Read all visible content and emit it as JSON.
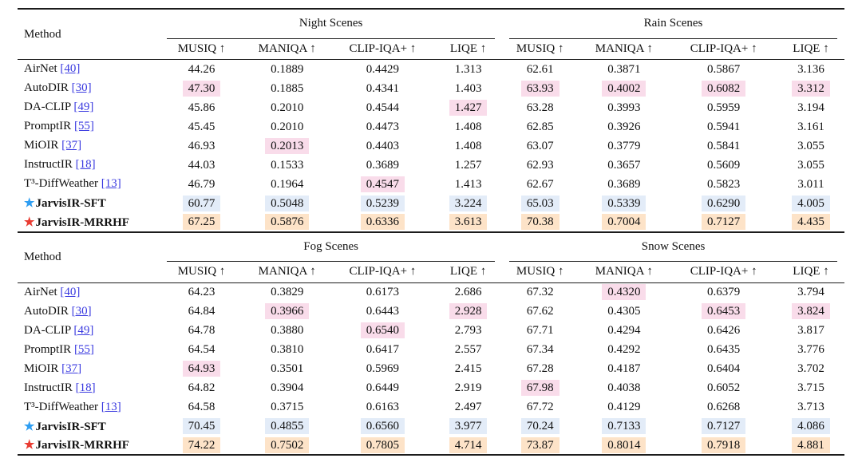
{
  "colors": {
    "highlight_pink": "#f9dcea",
    "highlight_blue": "#e3ecf8",
    "highlight_orange": "#fde3c8",
    "link_blue": "#3a3ae0",
    "star_blue": "#2f9ef2",
    "star_red": "#e93c32",
    "rule_black": "#1c1c1c"
  },
  "icons": {
    "star": "★"
  },
  "tables": [
    {
      "method_header": "Method",
      "groups": [
        {
          "label": "Night Scenes",
          "metrics": [
            "MUSIQ ↑",
            "MANIQA ↑",
            "CLIP-IQA+ ↑",
            "LIQE ↑"
          ]
        },
        {
          "label": "Rain Scenes",
          "metrics": [
            "MUSIQ ↑",
            "MANIQA ↑",
            "CLIP-IQA+ ↑",
            "LIQE ↑"
          ]
        }
      ],
      "rows": [
        {
          "method": "AirNet",
          "citation": "[40]",
          "star": "",
          "bold": false,
          "cells": [
            {
              "v": "44.26",
              "hl": ""
            },
            {
              "v": "0.1889",
              "hl": ""
            },
            {
              "v": "0.4429",
              "hl": ""
            },
            {
              "v": "1.313",
              "hl": ""
            },
            {
              "v": "62.61",
              "hl": ""
            },
            {
              "v": "0.3871",
              "hl": ""
            },
            {
              "v": "0.5867",
              "hl": ""
            },
            {
              "v": "3.136",
              "hl": ""
            }
          ]
        },
        {
          "method": "AutoDIR",
          "citation": "[30]",
          "star": "",
          "bold": false,
          "cells": [
            {
              "v": "47.30",
              "hl": "pink"
            },
            {
              "v": "0.1885",
              "hl": ""
            },
            {
              "v": "0.4341",
              "hl": ""
            },
            {
              "v": "1.403",
              "hl": ""
            },
            {
              "v": "63.93",
              "hl": "pink"
            },
            {
              "v": "0.4002",
              "hl": "pink"
            },
            {
              "v": "0.6082",
              "hl": "pink"
            },
            {
              "v": "3.312",
              "hl": "pink"
            }
          ]
        },
        {
          "method": "DA-CLIP",
          "citation": "[49]",
          "star": "",
          "bold": false,
          "cells": [
            {
              "v": "45.86",
              "hl": ""
            },
            {
              "v": "0.2010",
              "hl": ""
            },
            {
              "v": "0.4544",
              "hl": ""
            },
            {
              "v": "1.427",
              "hl": "pink"
            },
            {
              "v": "63.28",
              "hl": ""
            },
            {
              "v": "0.3993",
              "hl": ""
            },
            {
              "v": "0.5959",
              "hl": ""
            },
            {
              "v": "3.194",
              "hl": ""
            }
          ]
        },
        {
          "method": "PromptIR",
          "citation": "[55]",
          "star": "",
          "bold": false,
          "cells": [
            {
              "v": "45.45",
              "hl": ""
            },
            {
              "v": "0.2010",
              "hl": ""
            },
            {
              "v": "0.4473",
              "hl": ""
            },
            {
              "v": "1.408",
              "hl": ""
            },
            {
              "v": "62.85",
              "hl": ""
            },
            {
              "v": "0.3926",
              "hl": ""
            },
            {
              "v": "0.5941",
              "hl": ""
            },
            {
              "v": "3.161",
              "hl": ""
            }
          ]
        },
        {
          "method": "MiOIR",
          "citation": "[37]",
          "star": "",
          "bold": false,
          "cells": [
            {
              "v": "46.93",
              "hl": ""
            },
            {
              "v": "0.2013",
              "hl": "pink"
            },
            {
              "v": "0.4403",
              "hl": ""
            },
            {
              "v": "1.408",
              "hl": ""
            },
            {
              "v": "63.07",
              "hl": ""
            },
            {
              "v": "0.3779",
              "hl": ""
            },
            {
              "v": "0.5841",
              "hl": ""
            },
            {
              "v": "3.055",
              "hl": ""
            }
          ]
        },
        {
          "method": "InstructIR",
          "citation": "[18]",
          "star": "",
          "bold": false,
          "cells": [
            {
              "v": "44.03",
              "hl": ""
            },
            {
              "v": "0.1533",
              "hl": ""
            },
            {
              "v": "0.3689",
              "hl": ""
            },
            {
              "v": "1.257",
              "hl": ""
            },
            {
              "v": "62.93",
              "hl": ""
            },
            {
              "v": "0.3657",
              "hl": ""
            },
            {
              "v": "0.5609",
              "hl": ""
            },
            {
              "v": "3.055",
              "hl": ""
            }
          ]
        },
        {
          "method": "T³-DiffWeather",
          "citation": "[13]",
          "star": "",
          "bold": false,
          "cells": [
            {
              "v": "46.79",
              "hl": ""
            },
            {
              "v": "0.1964",
              "hl": ""
            },
            {
              "v": "0.4547",
              "hl": "pink"
            },
            {
              "v": "1.413",
              "hl": ""
            },
            {
              "v": "62.67",
              "hl": ""
            },
            {
              "v": "0.3689",
              "hl": ""
            },
            {
              "v": "0.5823",
              "hl": ""
            },
            {
              "v": "3.011",
              "hl": ""
            }
          ]
        },
        {
          "method": "JarvisIR-SFT",
          "citation": "",
          "star": "blue",
          "bold": true,
          "cells": [
            {
              "v": "60.77",
              "hl": "blue"
            },
            {
              "v": "0.5048",
              "hl": "blue"
            },
            {
              "v": "0.5239",
              "hl": "blue"
            },
            {
              "v": "3.224",
              "hl": "blue"
            },
            {
              "v": "65.03",
              "hl": "blue"
            },
            {
              "v": "0.5339",
              "hl": "blue"
            },
            {
              "v": "0.6290",
              "hl": "blue"
            },
            {
              "v": "4.005",
              "hl": "blue"
            }
          ]
        },
        {
          "method": "JarvisIR-MRRHF",
          "citation": "",
          "star": "red",
          "bold": true,
          "cells": [
            {
              "v": "67.25",
              "hl": "orange"
            },
            {
              "v": "0.5876",
              "hl": "orange"
            },
            {
              "v": "0.6336",
              "hl": "orange"
            },
            {
              "v": "3.613",
              "hl": "orange"
            },
            {
              "v": "70.38",
              "hl": "orange"
            },
            {
              "v": "0.7004",
              "hl": "orange"
            },
            {
              "v": "0.7127",
              "hl": "orange"
            },
            {
              "v": "4.435",
              "hl": "orange"
            }
          ]
        }
      ]
    },
    {
      "method_header": "Method",
      "groups": [
        {
          "label": "Fog Scenes",
          "metrics": [
            "MUSIQ ↑",
            "MANIQA ↑",
            "CLIP-IQA+ ↑",
            "LIQE ↑"
          ]
        },
        {
          "label": "Snow Scenes",
          "metrics": [
            "MUSIQ ↑",
            "MANIQA ↑",
            "CLIP-IQA+ ↑",
            "LIQE ↑"
          ]
        }
      ],
      "rows": [
        {
          "method": "AirNet",
          "citation": "[40]",
          "star": "",
          "bold": false,
          "cells": [
            {
              "v": "64.23",
              "hl": ""
            },
            {
              "v": "0.3829",
              "hl": ""
            },
            {
              "v": "0.6173",
              "hl": ""
            },
            {
              "v": "2.686",
              "hl": ""
            },
            {
              "v": "67.32",
              "hl": ""
            },
            {
              "v": "0.4320",
              "hl": "pink"
            },
            {
              "v": "0.6379",
              "hl": ""
            },
            {
              "v": "3.794",
              "hl": ""
            }
          ]
        },
        {
          "method": "AutoDIR",
          "citation": "[30]",
          "star": "",
          "bold": false,
          "cells": [
            {
              "v": "64.84",
              "hl": ""
            },
            {
              "v": "0.3966",
              "hl": "pink"
            },
            {
              "v": "0.6443",
              "hl": ""
            },
            {
              "v": "2.928",
              "hl": "pink"
            },
            {
              "v": "67.62",
              "hl": ""
            },
            {
              "v": "0.4305",
              "hl": ""
            },
            {
              "v": "0.6453",
              "hl": "pink"
            },
            {
              "v": "3.824",
              "hl": "pink"
            }
          ]
        },
        {
          "method": "DA-CLIP",
          "citation": "[49]",
          "star": "",
          "bold": false,
          "cells": [
            {
              "v": "64.78",
              "hl": ""
            },
            {
              "v": "0.3880",
              "hl": ""
            },
            {
              "v": "0.6540",
              "hl": "pink"
            },
            {
              "v": "2.793",
              "hl": ""
            },
            {
              "v": "67.71",
              "hl": ""
            },
            {
              "v": "0.4294",
              "hl": ""
            },
            {
              "v": "0.6426",
              "hl": ""
            },
            {
              "v": "3.817",
              "hl": ""
            }
          ]
        },
        {
          "method": "PromptIR",
          "citation": "[55]",
          "star": "",
          "bold": false,
          "cells": [
            {
              "v": "64.54",
              "hl": ""
            },
            {
              "v": "0.3810",
              "hl": ""
            },
            {
              "v": "0.6417",
              "hl": ""
            },
            {
              "v": "2.557",
              "hl": ""
            },
            {
              "v": "67.34",
              "hl": ""
            },
            {
              "v": "0.4292",
              "hl": ""
            },
            {
              "v": "0.6435",
              "hl": ""
            },
            {
              "v": "3.776",
              "hl": ""
            }
          ]
        },
        {
          "method": "MiOIR",
          "citation": "[37]",
          "star": "",
          "bold": false,
          "cells": [
            {
              "v": "64.93",
              "hl": "pink"
            },
            {
              "v": "0.3501",
              "hl": ""
            },
            {
              "v": "0.5969",
              "hl": ""
            },
            {
              "v": "2.415",
              "hl": ""
            },
            {
              "v": "67.28",
              "hl": ""
            },
            {
              "v": "0.4187",
              "hl": ""
            },
            {
              "v": "0.6404",
              "hl": ""
            },
            {
              "v": "3.702",
              "hl": ""
            }
          ]
        },
        {
          "method": "InstructIR",
          "citation": "[18]",
          "star": "",
          "bold": false,
          "cells": [
            {
              "v": "64.82",
              "hl": ""
            },
            {
              "v": "0.3904",
              "hl": ""
            },
            {
              "v": "0.6449",
              "hl": ""
            },
            {
              "v": "2.919",
              "hl": ""
            },
            {
              "v": "67.98",
              "hl": "pink"
            },
            {
              "v": "0.4038",
              "hl": ""
            },
            {
              "v": "0.6052",
              "hl": ""
            },
            {
              "v": "3.715",
              "hl": ""
            }
          ]
        },
        {
          "method": "T³-DiffWeather",
          "citation": "[13]",
          "star": "",
          "bold": false,
          "cells": [
            {
              "v": "64.58",
              "hl": ""
            },
            {
              "v": "0.3715",
              "hl": ""
            },
            {
              "v": "0.6163",
              "hl": ""
            },
            {
              "v": "2.497",
              "hl": ""
            },
            {
              "v": "67.72",
              "hl": ""
            },
            {
              "v": "0.4129",
              "hl": ""
            },
            {
              "v": "0.6268",
              "hl": ""
            },
            {
              "v": "3.713",
              "hl": ""
            }
          ]
        },
        {
          "method": "JarvisIR-SFT",
          "citation": "",
          "star": "blue",
          "bold": true,
          "cells": [
            {
              "v": "70.45",
              "hl": "blue"
            },
            {
              "v": "0.4855",
              "hl": "blue"
            },
            {
              "v": "0.6560",
              "hl": "blue"
            },
            {
              "v": "3.977",
              "hl": "blue"
            },
            {
              "v": "70.24",
              "hl": "blue"
            },
            {
              "v": "0.7133",
              "hl": "blue"
            },
            {
              "v": "0.7127",
              "hl": "blue"
            },
            {
              "v": "4.086",
              "hl": "blue"
            }
          ]
        },
        {
          "method": "JarvisIR-MRRHF",
          "citation": "",
          "star": "red",
          "bold": true,
          "cells": [
            {
              "v": "74.22",
              "hl": "orange"
            },
            {
              "v": "0.7502",
              "hl": "orange"
            },
            {
              "v": "0.7805",
              "hl": "orange"
            },
            {
              "v": "4.714",
              "hl": "orange"
            },
            {
              "v": "73.87",
              "hl": "orange"
            },
            {
              "v": "0.8014",
              "hl": "orange"
            },
            {
              "v": "0.7918",
              "hl": "orange"
            },
            {
              "v": "4.881",
              "hl": "orange"
            }
          ]
        }
      ]
    }
  ]
}
